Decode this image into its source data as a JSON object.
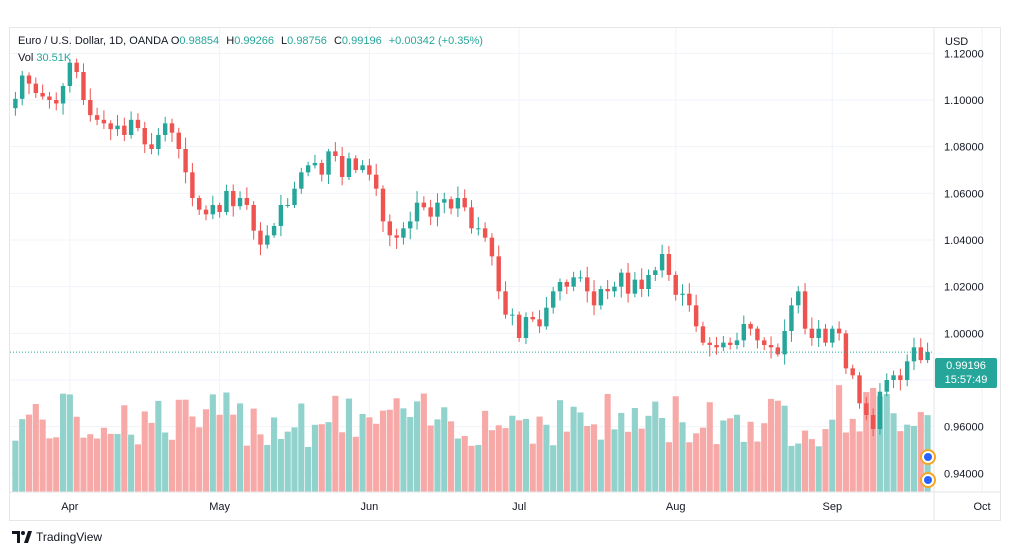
{
  "legend": {
    "symbol": "Euro / U.S. Dollar, 1D, OANDA",
    "open_label": "O",
    "open": "0.98854",
    "high_label": "H",
    "high": "0.99266",
    "low_label": "L",
    "low": "0.98756",
    "close_label": "C",
    "close": "0.99196",
    "change": "+0.00342 (+0.35%)",
    "vol_label": "Vol",
    "vol": "30.51K"
  },
  "price_axis": {
    "currency": "USD",
    "ticks": [
      "1.12000",
      "1.10000",
      "1.08000",
      "1.06000",
      "1.04000",
      "1.02000",
      "1.00000",
      "0.98000",
      "0.96000",
      "0.94000"
    ]
  },
  "current_price": {
    "price": "0.99196",
    "countdown": "15:57:49"
  },
  "brand": {
    "name": "TradingView"
  },
  "colors": {
    "up": "#26a69a",
    "down": "#ef5350",
    "vol_up": "#92d2cc",
    "vol_down": "#f7a9a7",
    "grid": "#f0f3fa"
  },
  "chart_data": {
    "type": "candlestick",
    "title": "Euro / U.S. Dollar, 1D, OANDA",
    "y_unit": "USD",
    "ylim": [
      0.932,
      1.13
    ],
    "x_ticks": [
      {
        "label": "Apr",
        "index": 8
      },
      {
        "label": "May",
        "index": 30
      },
      {
        "label": "Jun",
        "index": 52
      },
      {
        "label": "Jul",
        "index": 74
      },
      {
        "label": "Aug",
        "index": 97
      },
      {
        "label": "Sep",
        "index": 120
      },
      {
        "label": "Oct",
        "index": 142
      }
    ],
    "grid": true,
    "candles_close": [
      1.1005,
      1.1105,
      1.107,
      1.103,
      1.1015,
      1.1,
      1.0985,
      1.106,
      1.116,
      1.112,
      1.1,
      1.0935,
      1.0915,
      1.09,
      1.0875,
      1.089,
      1.085,
      1.0915,
      1.088,
      1.081,
      1.079,
      1.085,
      1.09,
      1.086,
      1.079,
      1.069,
      1.058,
      1.053,
      1.051,
      1.055,
      1.052,
      1.061,
      1.0545,
      1.058,
      1.055,
      1.044,
      1.038,
      1.042,
      1.046,
      1.055,
      1.055,
      1.062,
      1.069,
      1.072,
      1.073,
      1.068,
      1.078,
      1.076,
      1.067,
      1.075,
      1.07,
      1.072,
      1.068,
      1.062,
      1.048,
      1.042,
      1.041,
      1.045,
      1.048,
      1.056,
      1.054,
      1.05,
      1.056,
      1.0575,
      1.0535,
      1.058,
      1.054,
      1.045,
      1.045,
      1.041,
      1.033,
      1.018,
      1.008,
      1.008,
      0.998,
      1.007,
      1.006,
      1.003,
      1.011,
      1.018,
      1.022,
      1.02,
      1.024,
      1.024,
      1.018,
      1.012,
      1.019,
      1.018,
      1.02,
      1.026,
      1.017,
      1.023,
      1.019,
      1.025,
      1.027,
      1.034,
      1.025,
      1.0165,
      1.017,
      1.012,
      1.003,
      0.996,
      0.995,
      0.994,
      0.996,
      0.995,
      0.997,
      1.004,
      1.002,
      0.997,
      0.995,
      0.994,
      0.991,
      1.001,
      1.012,
      1.018,
      1.002,
      0.998,
      1.002,
      0.996,
      1.002,
      1.0,
      0.985,
      0.982,
      0.97,
      0.965,
      0.959,
      0.975,
      0.98,
      0.982,
      0.98,
      0.988,
      0.994,
      0.98854,
      0.99196
    ],
    "volume_note": "relative daily volume bars"
  }
}
